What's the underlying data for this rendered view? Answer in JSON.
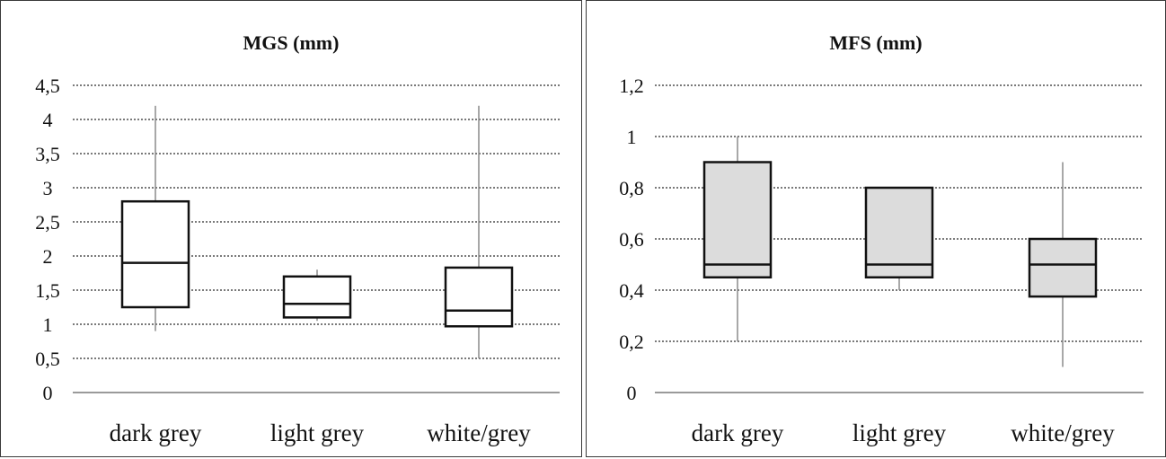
{
  "colors": {
    "grid": "#7a7a7a",
    "axis": "#9a9a9a",
    "box_stroke": "#111111",
    "whisker": "#8a8a8a",
    "left_fill": "#ffffff",
    "right_fill": "#dcdcdc"
  },
  "chart_data": [
    {
      "type": "boxplot",
      "title": "MGS (mm)",
      "categories": [
        "dark grey",
        "light grey",
        "white/grey"
      ],
      "ylim": [
        0,
        4.5
      ],
      "yticks": [
        0,
        0.5,
        1,
        1.5,
        2,
        2.5,
        3,
        3.5,
        4,
        4.5
      ],
      "ytick_labels": [
        "0",
        "0,5",
        "1",
        "1,5",
        "2",
        "2,5",
        "3",
        "3,5",
        "4",
        "4,5"
      ],
      "grid": true,
      "boxes": [
        {
          "min": 0.9,
          "q1": 1.25,
          "median": 1.9,
          "q3": 2.8,
          "max": 4.2
        },
        {
          "min": 1.05,
          "q1": 1.1,
          "median": 1.3,
          "q3": 1.7,
          "max": 1.8
        },
        {
          "min": 0.5,
          "q1": 0.97,
          "median": 1.2,
          "q3": 1.83,
          "max": 4.2
        }
      ]
    },
    {
      "type": "boxplot",
      "title": "MFS (mm)",
      "categories": [
        "dark grey",
        "light grey",
        "white/grey"
      ],
      "ylim": [
        0,
        1.2
      ],
      "yticks": [
        0,
        0.2,
        0.4,
        0.6,
        0.8,
        1,
        1.2
      ],
      "ytick_labels": [
        "0",
        "0,2",
        "0,4",
        "0,6",
        "0,8",
        "1",
        "1,2"
      ],
      "grid": true,
      "boxes": [
        {
          "min": 0.2,
          "q1": 0.45,
          "median": 0.5,
          "q3": 0.9,
          "max": 1.0
        },
        {
          "min": 0.4,
          "q1": 0.45,
          "median": 0.5,
          "q3": 0.8,
          "max": 0.8
        },
        {
          "min": 0.1,
          "q1": 0.375,
          "median": 0.5,
          "q3": 0.6,
          "max": 0.9
        }
      ]
    }
  ]
}
